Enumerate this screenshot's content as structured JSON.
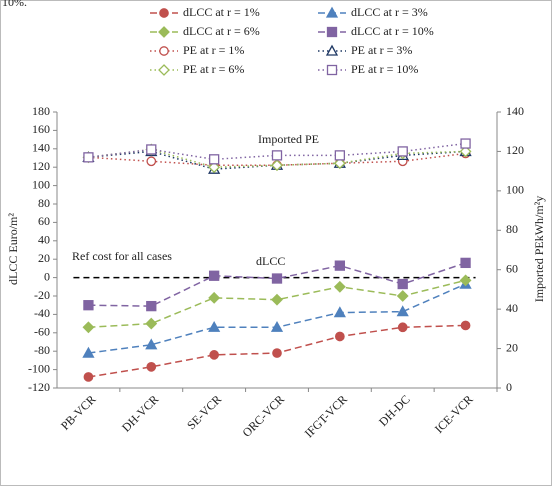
{
  "chart_data": {
    "type": "line",
    "caption_fragment": "10%.",
    "categories": [
      "PB-VCR",
      "DH-VCR",
      "SE-VCR",
      "ORC-VCR",
      "IFGT-VCR",
      "DH-DC",
      "ICE-VCR"
    ],
    "y_label": "dLCC Euro/m²",
    "y2_label": "Imported  PEkWh/m²y",
    "annotations": [
      "Imported  PE",
      "dLCC"
    ],
    "ref_line": {
      "value": 0,
      "label": "Ref cost for all cases"
    },
    "ylim": [
      -120,
      180
    ],
    "yticks": [
      -120,
      -100,
      -80,
      -60,
      -40,
      -20,
      0,
      20,
      40,
      60,
      80,
      100,
      120,
      140,
      160,
      180
    ],
    "y2lim": [
      0,
      140
    ],
    "y2ticks": [
      0,
      20,
      40,
      60,
      80,
      100,
      120,
      140
    ],
    "series": [
      {
        "name": "dLCC at r = 1%",
        "color": "#c0504d",
        "marker": "circle",
        "filled": true,
        "line_style": "dashed",
        "values": [
          -108,
          -97,
          -84,
          -82,
          -64,
          -54,
          -52
        ]
      },
      {
        "name": "dLCC at r = 3%",
        "color": "#4f81bd",
        "marker": "triangle",
        "filled": true,
        "line_style": "dashed",
        "values": [
          -82,
          -73,
          -54,
          -54,
          -38,
          -37,
          -7
        ]
      },
      {
        "name": "dLCC at r = 6%",
        "color": "#9bbb59",
        "marker": "diamond",
        "filled": true,
        "line_style": "dashed",
        "values": [
          -54,
          -50,
          -22,
          -24,
          -10,
          -20,
          -3
        ]
      },
      {
        "name": "dLCC at r = 10%",
        "color": "#8064a2",
        "marker": "square",
        "filled": true,
        "line_style": "dashed",
        "values": [
          -30,
          -31,
          2,
          -1,
          13,
          -7,
          16
        ]
      },
      {
        "name": "PE at r = 1%",
        "color": "#c0504d",
        "marker": "circle",
        "filled": false,
        "line_style": "dotted",
        "axis": "y2",
        "values": [
          117,
          115,
          113,
          113,
          114,
          115,
          119
        ]
      },
      {
        "name": "PE at r = 3%",
        "color": "#1f3864",
        "marker": "triangle",
        "filled": false,
        "line_style": "dotted",
        "axis": "y2",
        "values": [
          117,
          120,
          111,
          113,
          114,
          118,
          120
        ]
      },
      {
        "name": "PE at r = 6%",
        "color": "#9bbb59",
        "marker": "diamond",
        "filled": false,
        "line_style": "dotted",
        "axis": "y2",
        "values": [
          117,
          121,
          112,
          113,
          114,
          119,
          120
        ]
      },
      {
        "name": "PE at r = 10%",
        "color": "#8064a2",
        "marker": "square",
        "filled": false,
        "line_style": "dotted",
        "axis": "y2",
        "values": [
          117,
          121,
          116,
          118,
          118,
          120,
          124
        ]
      }
    ]
  }
}
